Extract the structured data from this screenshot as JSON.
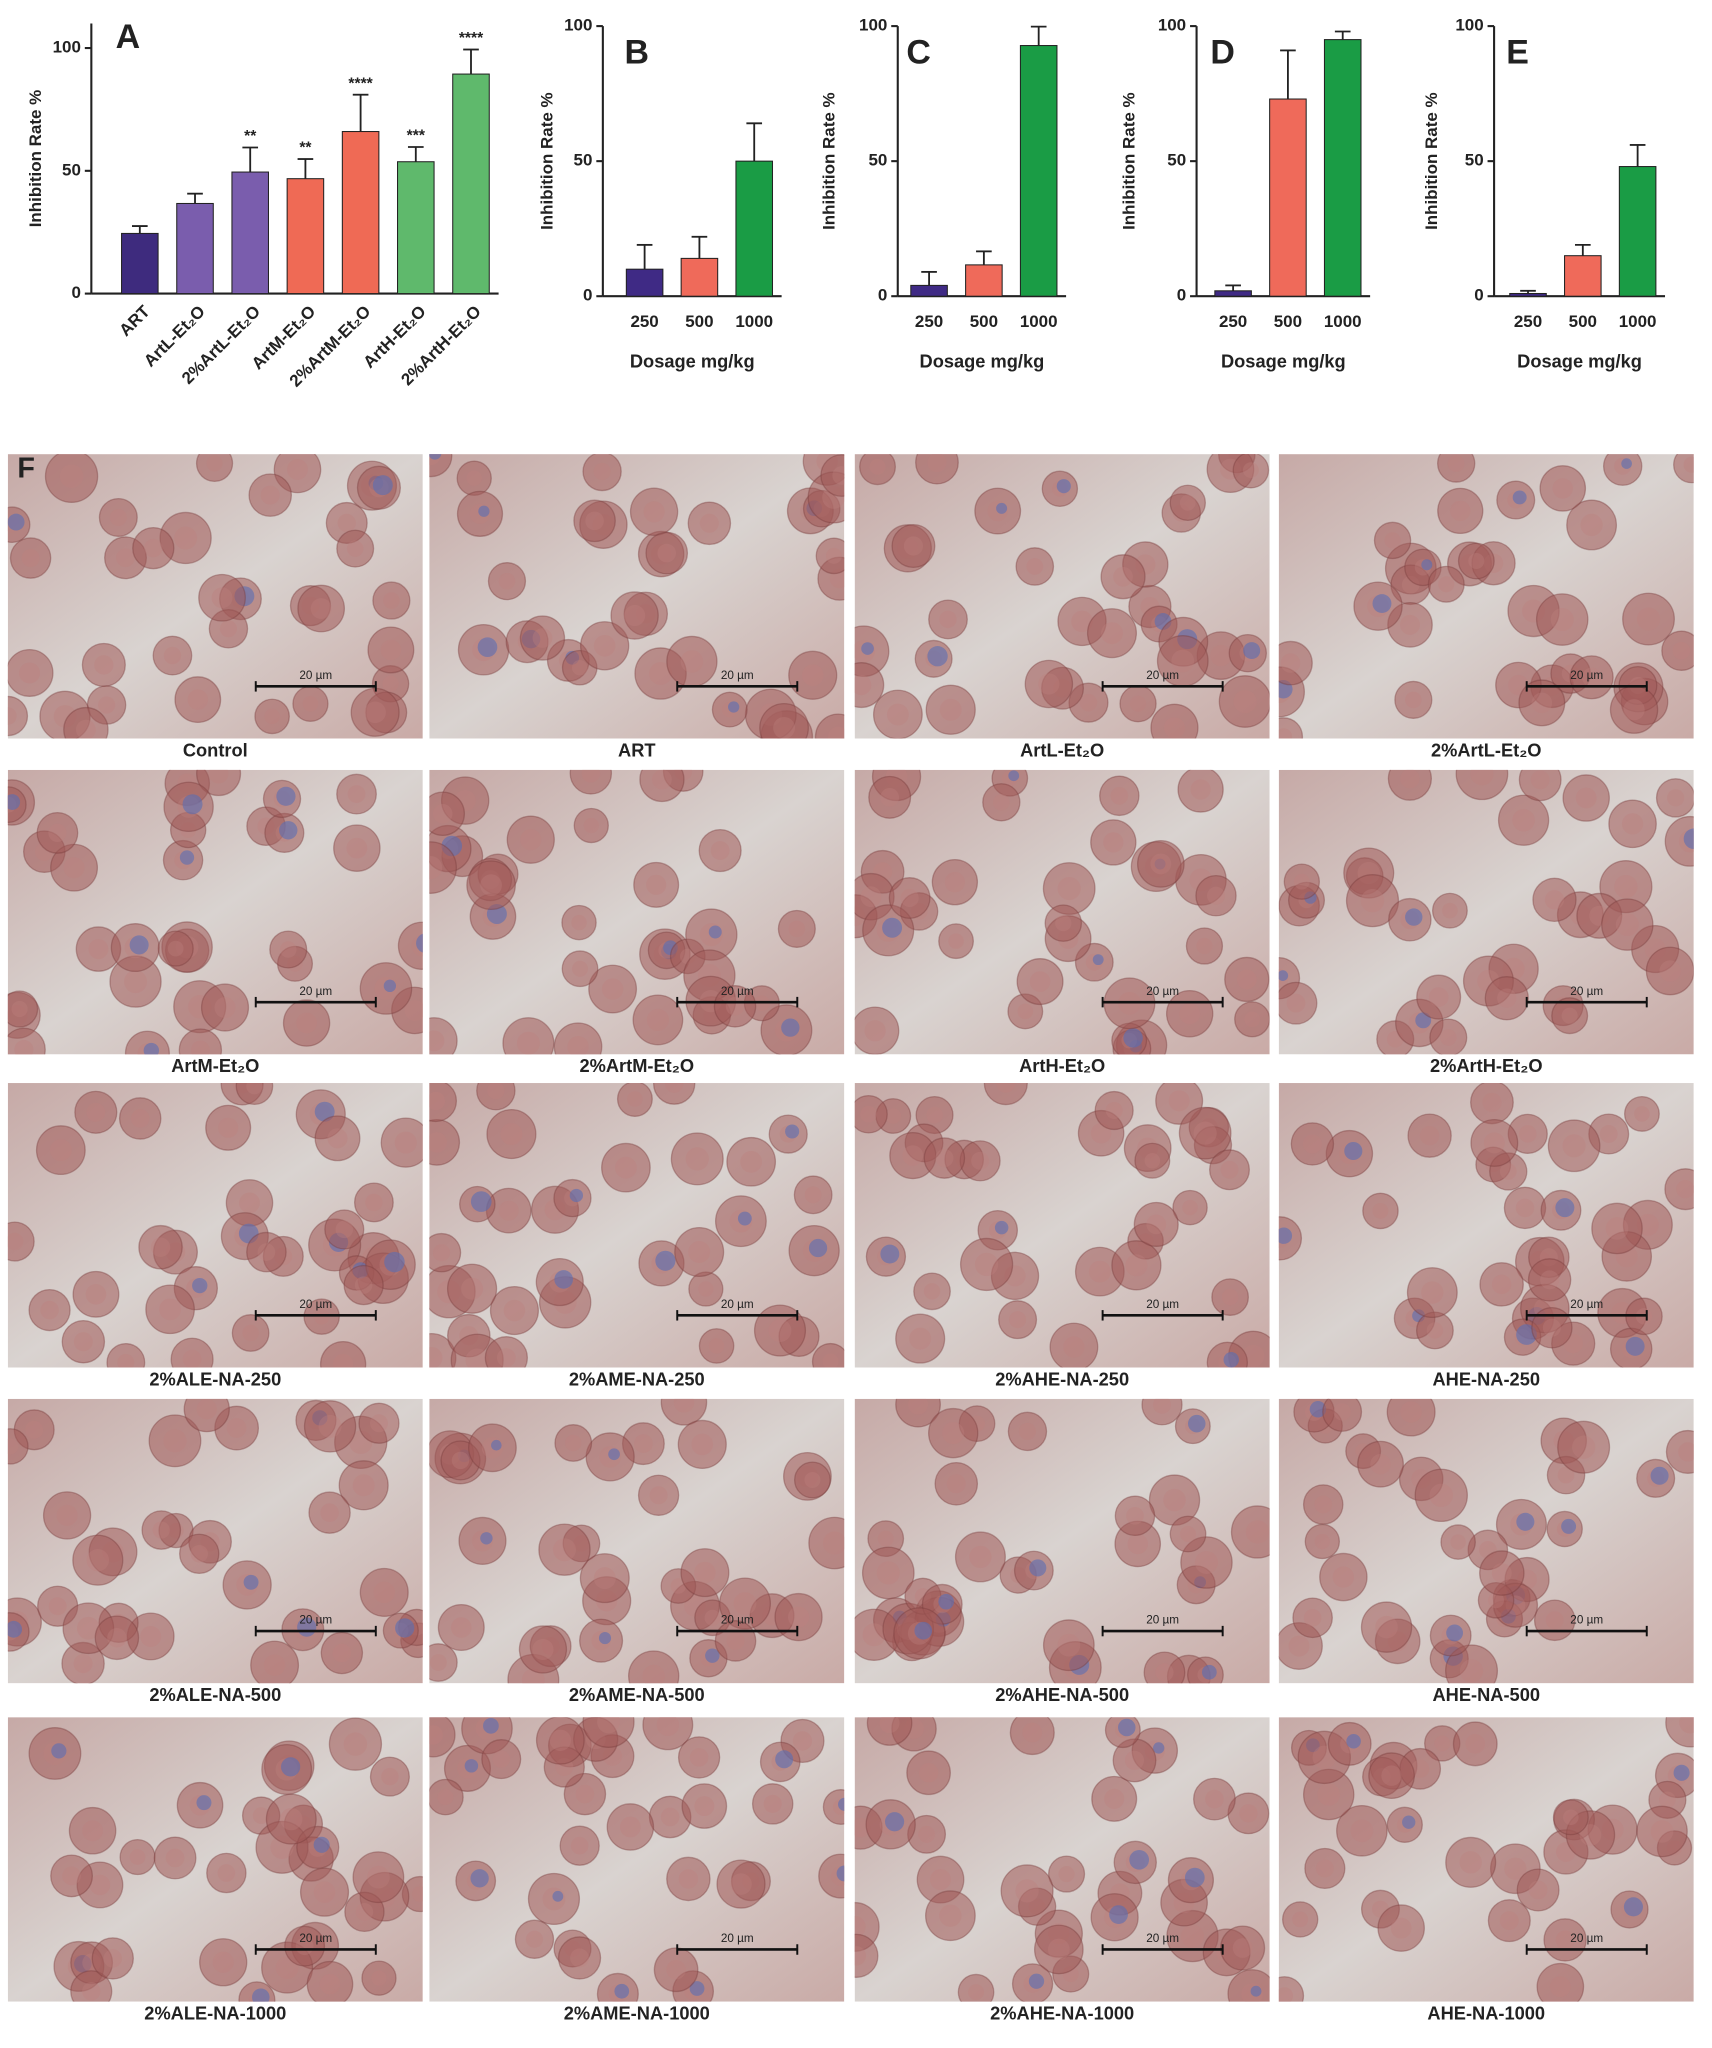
{
  "chart_data": [
    {
      "type": "bar",
      "panel": "A",
      "ylabel": "Inhibition Rate %",
      "categories": [
        "ART",
        "ArtL-Et₂O",
        "2%ArtL-Et₂O",
        "ArtM-Et₂O",
        "2%ArtM-Et₂O",
        "ArtH-Et₂O",
        "2%ArtH-Et₂O"
      ],
      "values": [
        24.5,
        36.7,
        49.5,
        46.8,
        66,
        53.7,
        89.4
      ],
      "errors": [
        3,
        4,
        10,
        8,
        15,
        6,
        10
      ],
      "annotations": [
        null,
        null,
        "**",
        "**",
        "****",
        "***",
        "****"
      ],
      "colors": [
        "#3e2b7e",
        "#7a5dad",
        "#7a5dad",
        "#ef6a55",
        "#ef6a55",
        "#5fb96c",
        "#5fb96c"
      ],
      "ylim": [
        0,
        110
      ],
      "yticks": [
        0,
        50,
        100
      ]
    },
    {
      "type": "bar",
      "panel": "B",
      "ylabel": "Inhibition Rate %",
      "xlabel": "Dosage mg/kg",
      "categories": [
        "250",
        "500",
        "1000"
      ],
      "values": [
        10,
        14,
        50
      ],
      "errors": [
        9,
        8,
        14
      ],
      "colors": [
        "#3f2a85",
        "#ef6a5a",
        "#1a9c45"
      ],
      "ylim": [
        0,
        100
      ],
      "yticks": [
        0,
        50,
        100
      ]
    },
    {
      "type": "bar",
      "panel": "C",
      "ylabel": "Inhibition Rate %",
      "xlabel": "Dosage mg/kg",
      "categories": [
        "250",
        "500",
        "1000"
      ],
      "values": [
        4,
        11.6,
        92.8
      ],
      "errors": [
        5,
        5,
        7
      ],
      "colors": [
        "#3f2a85",
        "#ef6a5a",
        "#1a9c45"
      ],
      "ylim": [
        0,
        100
      ],
      "yticks": [
        0,
        50,
        100
      ]
    },
    {
      "type": "bar",
      "panel": "D",
      "ylabel": "Inhibition Rate %",
      "xlabel": "Dosage mg/kg",
      "categories": [
        "250",
        "500",
        "1000"
      ],
      "values": [
        2,
        73,
        95
      ],
      "errors": [
        2,
        18,
        3
      ],
      "colors": [
        "#3f2a85",
        "#ef6a5a",
        "#1a9c45"
      ],
      "ylim": [
        0,
        100
      ],
      "yticks": [
        0,
        50,
        100
      ]
    },
    {
      "type": "bar",
      "panel": "E",
      "ylabel": "Inhibition Rate %",
      "xlabel": "Dosage mg/kg",
      "categories": [
        "250",
        "500",
        "1000"
      ],
      "values": [
        1,
        15,
        48
      ],
      "errors": [
        1,
        4,
        8
      ],
      "colors": [
        "#3f2a85",
        "#ef6a5a",
        "#1a9c45"
      ],
      "ylim": [
        0,
        100
      ],
      "yticks": [
        0,
        50,
        100
      ]
    }
  ],
  "panel_f": {
    "label": "F",
    "scale_bar": "20 µm",
    "captions": [
      "Control",
      "ART",
      "ArtL-Et₂O",
      "2%ArtL-Et₂O",
      "ArtM-Et₂O",
      "2%ArtM-Et₂O",
      "ArtH-Et₂O",
      "2%ArtH-Et₂O",
      "2%ALE-NA-250",
      "2%AME-NA-250",
      "2%AHE-NA-250",
      "AHE-NA-250",
      "2%ALE-NA-500",
      "2%AME-NA-500",
      "2%AHE-NA-500",
      "AHE-NA-500",
      "2%ALE-NA-1000",
      "2%AME-NA-1000",
      "2%AHE-NA-1000",
      "AHE-NA-1000"
    ]
  }
}
